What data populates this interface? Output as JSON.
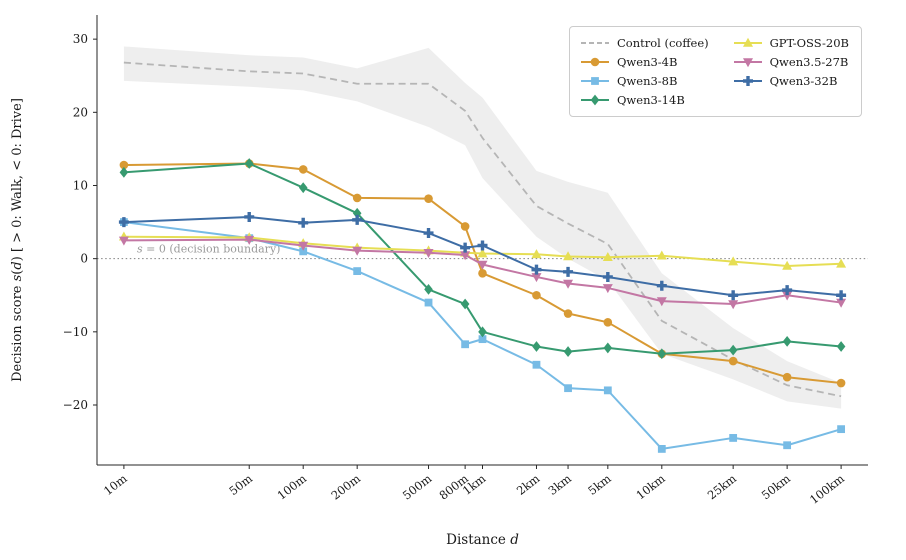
{
  "figure": {
    "xlabel_parts": [
      {
        "text": "Distance ",
        "italic": false
      },
      {
        "text": "d",
        "italic": true
      }
    ],
    "ylabel_parts": [
      {
        "text": "Decision score ",
        "italic": false
      },
      {
        "text": "s",
        "italic": true
      },
      {
        "text": "(",
        "italic": false
      },
      {
        "text": "d",
        "italic": true
      },
      {
        "text": ")  [ > 0: Walk,  < 0: Drive]",
        "italic": false
      }
    ],
    "background": "#ffffff"
  },
  "chart_data": {
    "type": "line",
    "x_scale": "log",
    "title": "",
    "xlabel": "Distance d",
    "ylabel": "Decision score s(d) [ > 0: Walk, < 0: Drive]",
    "categories": [
      "10m",
      "50m",
      "100m",
      "200m",
      "500m",
      "800m",
      "1km",
      "2km",
      "3km",
      "5km",
      "10km",
      "25km",
      "50km",
      "100km"
    ],
    "x_values_meters": [
      10,
      50,
      100,
      200,
      500,
      800,
      1000,
      2000,
      3000,
      5000,
      10000,
      25000,
      50000,
      100000
    ],
    "ylim": [
      -28.2,
      33.3
    ],
    "yticks": [
      -20,
      -10,
      0,
      10,
      20,
      30
    ],
    "zero_line": 0,
    "annotation_parts": [
      {
        "text": "s",
        "italic": true
      },
      {
        "text": " = 0 (decision boundary)",
        "italic": false
      }
    ],
    "grid": false,
    "legend_position": "upper right",
    "series": [
      {
        "name": "Control (coffee)",
        "color": "#b5b5b5",
        "band_color": "#d9d9d9",
        "style": "dashed",
        "marker": "none",
        "values": [
          26.8,
          25.6,
          25.3,
          23.9,
          23.9,
          20.2,
          16.5,
          7.2,
          4.8,
          2.0,
          -8.5,
          -13.8,
          -17.3,
          -18.8
        ],
        "band_upper": [
          29.0,
          27.8,
          27.5,
          26.0,
          28.8,
          24.0,
          22.0,
          12.0,
          10.5,
          9.0,
          -2.0,
          -9.5,
          -14.0,
          -17.0
        ],
        "band_lower": [
          24.3,
          23.5,
          23.0,
          21.5,
          18.0,
          15.5,
          11.0,
          3.0,
          0.0,
          -3.0,
          -13.0,
          -16.5,
          -19.5,
          -20.5
        ]
      },
      {
        "name": "Qwen3-4B",
        "color": "#d89a34",
        "style": "solid",
        "marker": "circle",
        "values": [
          12.8,
          13.0,
          12.2,
          8.3,
          8.2,
          4.4,
          -2.0,
          -5.0,
          -7.5,
          -8.7,
          -13.0,
          -14.0,
          -16.2,
          -17.0
        ]
      },
      {
        "name": "Qwen3-8B",
        "color": "#77bbe5",
        "style": "solid",
        "marker": "square",
        "values": [
          5.0,
          2.8,
          1.0,
          -1.7,
          -6.0,
          -11.7,
          -11.0,
          -14.5,
          -17.7,
          -18.0,
          -26.0,
          -24.5,
          -25.5,
          -23.3
        ]
      },
      {
        "name": "Qwen3-14B",
        "color": "#379a70",
        "style": "solid",
        "marker": "diamond",
        "values": [
          11.8,
          13.0,
          9.7,
          6.2,
          -4.2,
          -6.2,
          -10.0,
          -12.0,
          -12.7,
          -12.2,
          -13.0,
          -12.5,
          -11.3,
          -12.0
        ]
      },
      {
        "name": "GPT-OSS-20B",
        "color": "#e6de54",
        "style": "solid",
        "marker": "triangle-up",
        "values": [
          3.0,
          2.9,
          2.1,
          1.5,
          1.1,
          0.8,
          0.7,
          0.6,
          0.3,
          0.2,
          0.4,
          -0.4,
          -1.0,
          -0.7
        ]
      },
      {
        "name": "Qwen3.5-27B",
        "color": "#c377a4",
        "style": "solid",
        "marker": "triangle-down",
        "values": [
          2.5,
          2.6,
          1.8,
          1.1,
          0.8,
          0.5,
          -0.8,
          -2.5,
          -3.4,
          -4.0,
          -5.8,
          -6.2,
          -5.0,
          -6.0
        ]
      },
      {
        "name": "Qwen3-32B",
        "color": "#3e6da5",
        "style": "solid",
        "marker": "plus",
        "values": [
          5.0,
          5.7,
          4.9,
          5.3,
          3.5,
          1.5,
          1.8,
          -1.5,
          -1.8,
          -2.5,
          -3.7,
          -5.0,
          -4.3,
          -5.0
        ]
      }
    ],
    "legend": {
      "columns": [
        [
          "Control (coffee)",
          "Qwen3-4B",
          "Qwen3-8B",
          "Qwen3-14B"
        ],
        [
          "GPT-OSS-20B",
          "Qwen3.5-27B",
          "Qwen3-32B"
        ]
      ]
    }
  }
}
